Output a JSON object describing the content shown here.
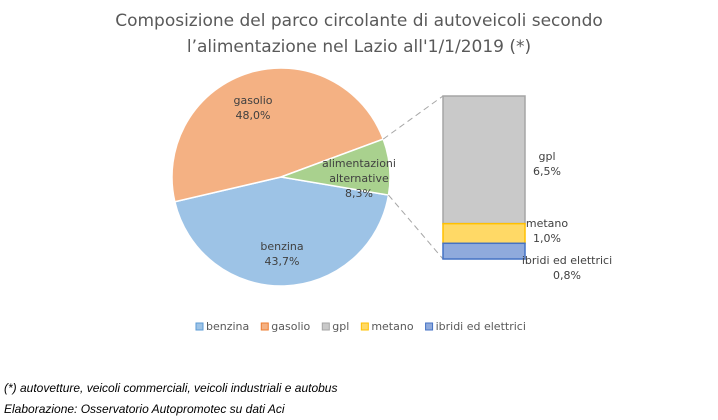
{
  "chart_data": {
    "type": "pie",
    "subtype": "bar-of-pie",
    "title": [
      "Composizione del parco circolante di autoveicoli secondo",
      "l’alimentazione nel Lazio all'1/1/2019 (*)"
    ],
    "slices": [
      {
        "name": "benzina",
        "value": 43.7,
        "label": "43,7%",
        "color": "#9dc3e6",
        "stroke": "#5b9bd5"
      },
      {
        "name": "gasolio",
        "value": 48.0,
        "label": "48,0%",
        "color": "#f4b183",
        "stroke": "#ed7d31"
      },
      {
        "name": "alimentazioni alternative",
        "label_lines": [
          "alimentazioni",
          "alternative"
        ],
        "value": 8.3,
        "label": "8,3%",
        "color": "#a9d18e",
        "stroke": "#70ad47"
      }
    ],
    "breakdown": [
      {
        "name": "gpl",
        "value": 6.5,
        "label": "6,5%",
        "color": "#c9c9c9",
        "stroke": "#a5a5a5"
      },
      {
        "name": "metano",
        "value": 1.0,
        "label": "1,0%",
        "color": "#ffd966",
        "stroke": "#ffc000"
      },
      {
        "name": "ibridi ed elettrici",
        "value": 0.8,
        "label": "0,8%",
        "color": "#8faadc",
        "stroke": "#4472c4"
      }
    ],
    "legend": [
      {
        "name": "benzina",
        "color": "#9dc3e6",
        "stroke": "#5b9bd5"
      },
      {
        "name": "gasolio",
        "color": "#f4b183",
        "stroke": "#ed7d31"
      },
      {
        "name": "gpl",
        "color": "#c9c9c9",
        "stroke": "#a5a5a5"
      },
      {
        "name": "metano",
        "color": "#ffd966",
        "stroke": "#ffc000"
      },
      {
        "name": "ibridi ed elettrici",
        "color": "#8faadc",
        "stroke": "#4472c4"
      }
    ],
    "legend_position": "bottom"
  },
  "footnotes": {
    "note": "(*) autovetture, veicoli commerciali, veicoli industriali e autobus",
    "source": "Elaborazione: Osservatorio Autopromotec su dati Aci"
  }
}
